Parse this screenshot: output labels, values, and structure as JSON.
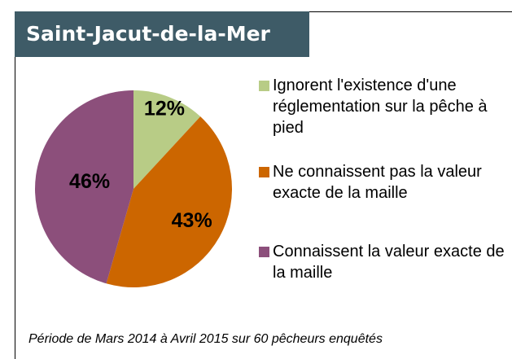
{
  "chart_data": {
    "type": "pie",
    "title": "Saint-Jacut-de-la-Mer",
    "categories": [
      "Ignorent l'existence d'une réglementation sur la pêche à pied",
      "Ne connaissent pas la valeur exacte de la maille",
      "Connaissent la valeur exacte de la maille"
    ],
    "values": [
      12,
      43,
      46
    ],
    "value_labels": [
      "12%",
      "43%",
      "46%"
    ],
    "colors": [
      "#b8cc86",
      "#cc6600",
      "#8c4f7b"
    ],
    "note": "Période de Mars 2014 à Avril 2015 sur 60 pêcheurs enquêtés"
  }
}
